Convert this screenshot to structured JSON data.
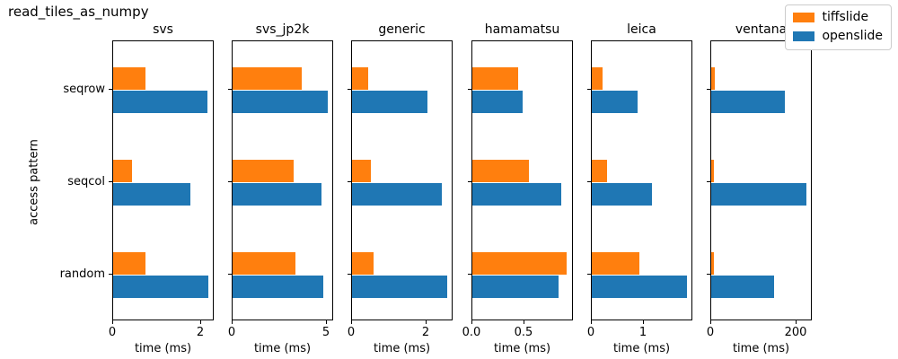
{
  "figure": {
    "title": "read_tiles_as_numpy"
  },
  "axes_shared": {
    "ylabel": "access pattern",
    "xlabel": "time (ms)",
    "categories": [
      "seqrow",
      "seqcol",
      "random"
    ]
  },
  "legend": {
    "entries": [
      {
        "label": "tiffslide",
        "color": "#ff7f0e"
      },
      {
        "label": "openslide",
        "color": "#1f77b4"
      }
    ]
  },
  "colors": {
    "tiffslide": "#ff7f0e",
    "openslide": "#1f77b4",
    "spine": "#000000"
  },
  "chart_data": [
    {
      "type": "bar",
      "orientation": "horizontal",
      "title": "svs",
      "xlabel": "time (ms)",
      "categories": [
        "seqrow",
        "seqcol",
        "random"
      ],
      "series": [
        {
          "name": "tiffslide",
          "values": [
            0.74,
            0.44,
            0.74
          ]
        },
        {
          "name": "openslide",
          "values": [
            2.17,
            1.79,
            2.19
          ]
        }
      ],
      "xlim": [
        0,
        2.3
      ],
      "xticks": [
        0,
        2
      ],
      "xtick_labels": [
        "0",
        "2"
      ]
    },
    {
      "type": "bar",
      "orientation": "horizontal",
      "title": "svs_jp2k",
      "xlabel": "time (ms)",
      "categories": [
        "seqrow",
        "seqcol",
        "random"
      ],
      "series": [
        {
          "name": "tiffslide",
          "values": [
            3.7,
            3.3,
            3.4
          ]
        },
        {
          "name": "openslide",
          "values": [
            5.1,
            4.8,
            4.9
          ]
        }
      ],
      "xlim": [
        0,
        5.36
      ],
      "xticks": [
        0,
        5
      ],
      "xtick_labels": [
        "0",
        "5"
      ]
    },
    {
      "type": "bar",
      "orientation": "horizontal",
      "title": "generic",
      "xlabel": "time (ms)",
      "categories": [
        "seqrow",
        "seqcol",
        "random"
      ],
      "series": [
        {
          "name": "tiffslide",
          "values": [
            0.43,
            0.52,
            0.59
          ]
        },
        {
          "name": "openslide",
          "values": [
            2.06,
            2.45,
            2.59
          ]
        }
      ],
      "xlim": [
        0,
        2.72
      ],
      "xticks": [
        0,
        2
      ],
      "xtick_labels": [
        "0",
        "2"
      ]
    },
    {
      "type": "bar",
      "orientation": "horizontal",
      "title": "hamamatsu",
      "xlabel": "time (ms)",
      "categories": [
        "seqrow",
        "seqcol",
        "random"
      ],
      "series": [
        {
          "name": "tiffslide",
          "values": [
            0.45,
            0.56,
            0.93
          ]
        },
        {
          "name": "openslide",
          "values": [
            0.49,
            0.87,
            0.85
          ]
        }
      ],
      "xlim": [
        0,
        0.98
      ],
      "xticks": [
        0.0,
        0.5
      ],
      "xtick_labels": [
        "0.0",
        "0.5"
      ]
    },
    {
      "type": "bar",
      "orientation": "horizontal",
      "title": "leica",
      "xlabel": "time (ms)",
      "categories": [
        "seqrow",
        "seqcol",
        "random"
      ],
      "series": [
        {
          "name": "tiffslide",
          "values": [
            0.21,
            0.3,
            0.93
          ]
        },
        {
          "name": "openslide",
          "values": [
            0.89,
            1.18,
            1.86
          ]
        }
      ],
      "xlim": [
        0,
        1.95
      ],
      "xticks": [
        0,
        1
      ],
      "xtick_labels": [
        "0",
        "1"
      ]
    },
    {
      "type": "bar",
      "orientation": "horizontal",
      "title": "ventana",
      "xlabel": "time (ms)",
      "categories": [
        "seqrow",
        "seqcol",
        "random"
      ],
      "series": [
        {
          "name": "tiffslide",
          "values": [
            9,
            7,
            7
          ]
        },
        {
          "name": "openslide",
          "values": [
            176,
            227,
            150
          ]
        }
      ],
      "xlim": [
        0,
        238
      ],
      "xticks": [
        0,
        200
      ],
      "xtick_labels": [
        "0",
        "200"
      ]
    }
  ]
}
